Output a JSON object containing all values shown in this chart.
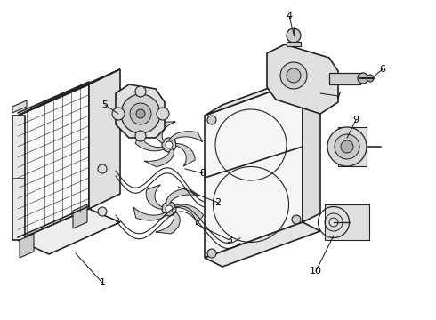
{
  "background_color": "#ffffff",
  "line_color": "#222222",
  "label_color": "#000000",
  "label_fontsize": 8,
  "lw": 0.8,
  "lw_thick": 1.2
}
